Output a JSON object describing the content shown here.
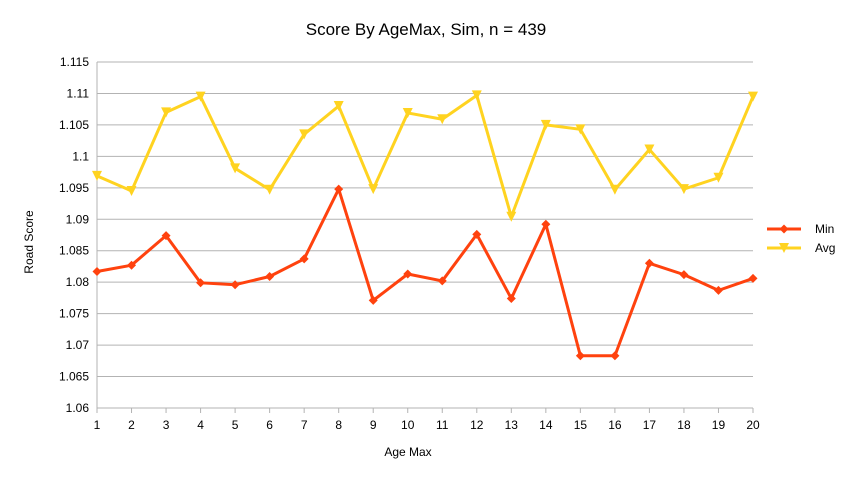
{
  "chart_data": {
    "type": "line",
    "title": "Score By AgeMax, Sim, n = 439",
    "xlabel": "Age Max",
    "ylabel": "Road Score",
    "x": [
      1,
      2,
      3,
      4,
      5,
      6,
      7,
      8,
      9,
      10,
      11,
      12,
      13,
      14,
      15,
      16,
      17,
      18,
      19,
      20
    ],
    "ylim": [
      1.06,
      1.115
    ],
    "yticks": [
      "1.06",
      "1.065",
      "1.07",
      "1.075",
      "1.08",
      "1.085",
      "1.09",
      "1.095",
      "1.1",
      "1.105",
      "1.11",
      "1.115"
    ],
    "grid": true,
    "legend_position": "right",
    "series": [
      {
        "name": "Min",
        "color": "#ff420e",
        "marker": "diamond",
        "values": [
          1.0817,
          1.0827,
          1.0874,
          1.0799,
          1.0796,
          1.0809,
          1.0837,
          1.0948,
          1.0771,
          1.0813,
          1.0802,
          1.0876,
          1.0774,
          1.0892,
          1.0683,
          1.0683,
          1.083,
          1.0812,
          1.0787,
          1.0806
        ]
      },
      {
        "name": "Avg",
        "color": "#ffd320",
        "marker": "triangle-down",
        "values": [
          1.0969,
          1.0945,
          1.107,
          1.1095,
          1.0981,
          1.0947,
          1.1035,
          1.108,
          1.0948,
          1.1069,
          1.1059,
          1.1097,
          1.0904,
          1.105,
          1.1043,
          1.0947,
          1.1011,
          1.0948,
          1.0966,
          1.1095
        ]
      }
    ]
  }
}
